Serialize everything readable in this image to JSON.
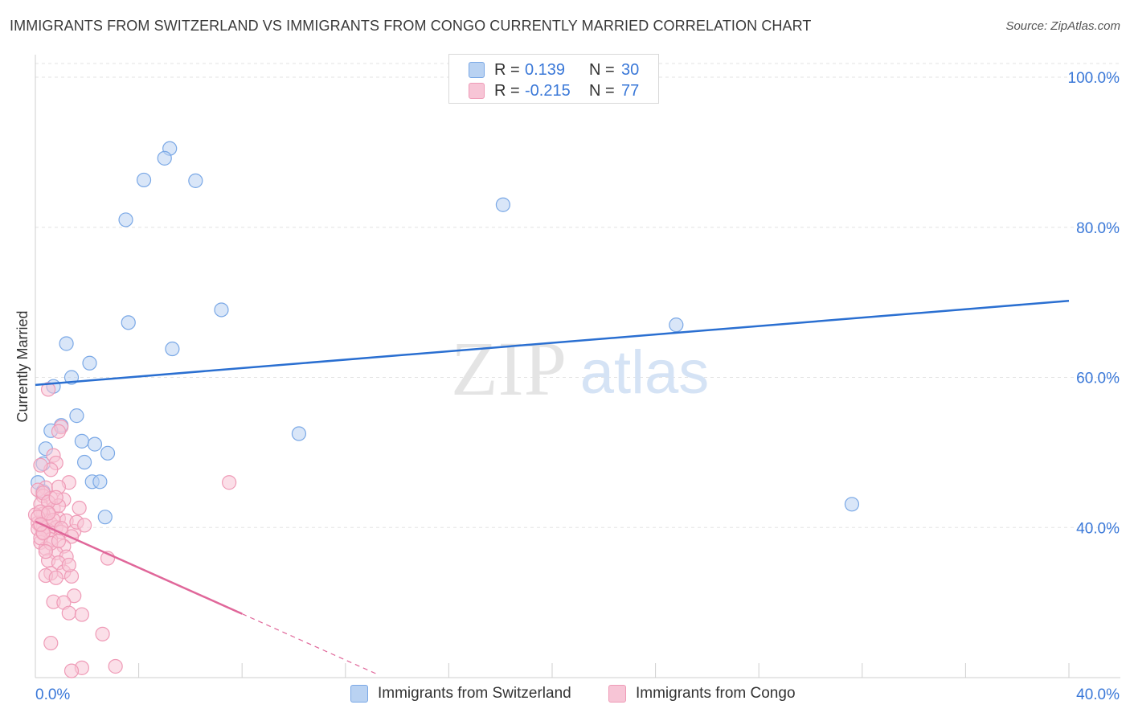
{
  "header": {
    "title": "IMMIGRANTS FROM SWITZERLAND VS IMMIGRANTS FROM CONGO CURRENTLY MARRIED CORRELATION CHART",
    "source": "Source: ZipAtlas.com"
  },
  "watermark": {
    "zip": "ZIP",
    "atlas": "atlas"
  },
  "legend": {
    "r_label": "R =",
    "n_label": "N =",
    "entries": [
      {
        "r": "0.139",
        "n": "30"
      },
      {
        "r": "-0.215",
        "n": "77"
      }
    ]
  },
  "chart_data": {
    "type": "scatter",
    "title": "IMMIGRANTS FROM SWITZERLAND VS IMMIGRANTS FROM CONGO CURRENTLY MARRIED CORRELATION CHART",
    "xlabel": "",
    "ylabel": "Currently Married",
    "xlim": [
      0,
      40
    ],
    "ylim": [
      20,
      103
    ],
    "x_ticks_visible": [
      "0.0%",
      "40.0%"
    ],
    "y_ticks": [
      {
        "value": 40,
        "label": "40.0%"
      },
      {
        "value": 60,
        "label": "60.0%"
      },
      {
        "value": 80,
        "label": "80.0%"
      },
      {
        "value": 100,
        "label": "100.0%"
      }
    ],
    "grid": true,
    "legend_position": "bottom",
    "series": [
      {
        "name": "Immigrants from Switzerland",
        "color": "#7aa8e6",
        "fill": "#b9d2f2",
        "line_color": "#2a6fd1",
        "r": 0.139,
        "n": 30,
        "trend": {
          "x0": 0,
          "y0": 59.0,
          "x1": 40,
          "y1": 70.2
        },
        "points": [
          [
            5.2,
            90.5
          ],
          [
            5.0,
            89.2
          ],
          [
            4.2,
            86.3
          ],
          [
            6.2,
            86.2
          ],
          [
            3.5,
            81.0
          ],
          [
            18.1,
            83.0
          ],
          [
            7.2,
            69.0
          ],
          [
            3.6,
            67.3
          ],
          [
            24.8,
            67.0
          ],
          [
            1.2,
            64.5
          ],
          [
            5.3,
            63.8
          ],
          [
            2.1,
            61.9
          ],
          [
            1.4,
            60.0
          ],
          [
            0.7,
            58.8
          ],
          [
            1.6,
            54.9
          ],
          [
            1.0,
            53.6
          ],
          [
            0.6,
            52.9
          ],
          [
            10.2,
            52.5
          ],
          [
            1.8,
            51.5
          ],
          [
            2.3,
            51.1
          ],
          [
            2.8,
            49.9
          ],
          [
            0.4,
            50.5
          ],
          [
            1.9,
            48.7
          ],
          [
            0.3,
            48.5
          ],
          [
            2.2,
            46.1
          ],
          [
            2.5,
            46.1
          ],
          [
            0.1,
            46.0
          ],
          [
            0.3,
            44.8
          ],
          [
            2.7,
            41.4
          ],
          [
            31.6,
            43.1
          ]
        ]
      },
      {
        "name": "Immigrants from Congo",
        "color": "#ef9bb7",
        "fill": "#f7c5d6",
        "line_color": "#e0679a",
        "r": -0.215,
        "n": 77,
        "trend": {
          "x0": 0,
          "y0": 40.8,
          "x1": 8.0,
          "y1": 28.5
        },
        "trend_dashed": {
          "x0": 8.0,
          "y0": 28.5,
          "x1": 13.2,
          "y1": 20.5
        },
        "points": [
          [
            0.5,
            58.4
          ],
          [
            1.0,
            53.4
          ],
          [
            0.9,
            52.8
          ],
          [
            0.7,
            49.6
          ],
          [
            0.8,
            48.6
          ],
          [
            0.6,
            47.7
          ],
          [
            0.2,
            48.3
          ],
          [
            1.3,
            46.0
          ],
          [
            0.4,
            45.3
          ],
          [
            0.9,
            45.4
          ],
          [
            7.5,
            46.0
          ],
          [
            0.1,
            45.0
          ],
          [
            0.3,
            44.2
          ],
          [
            0.6,
            43.9
          ],
          [
            1.1,
            43.7
          ],
          [
            0.2,
            43.1
          ],
          [
            0.7,
            42.5
          ],
          [
            0.5,
            42.0
          ],
          [
            0.3,
            41.8
          ],
          [
            0.0,
            41.7
          ],
          [
            0.9,
            41.2
          ],
          [
            1.2,
            40.9
          ],
          [
            0.4,
            40.9
          ],
          [
            0.1,
            40.6
          ],
          [
            0.6,
            40.5
          ],
          [
            0.2,
            40.2
          ],
          [
            0.3,
            40.0
          ],
          [
            0.8,
            40.0
          ],
          [
            0.1,
            39.8
          ],
          [
            0.5,
            39.6
          ],
          [
            1.0,
            39.4
          ],
          [
            1.5,
            39.5
          ],
          [
            0.3,
            39.2
          ],
          [
            1.4,
            38.8
          ],
          [
            0.6,
            38.4
          ],
          [
            0.2,
            38.0
          ],
          [
            1.1,
            37.5
          ],
          [
            0.4,
            37.2
          ],
          [
            0.8,
            36.6
          ],
          [
            1.2,
            36.1
          ],
          [
            2.8,
            35.9
          ],
          [
            0.5,
            35.6
          ],
          [
            0.9,
            35.3
          ],
          [
            1.1,
            34.1
          ],
          [
            0.6,
            33.9
          ],
          [
            0.4,
            33.6
          ],
          [
            0.8,
            33.3
          ],
          [
            1.4,
            33.5
          ],
          [
            1.5,
            30.9
          ],
          [
            0.7,
            30.1
          ],
          [
            1.1,
            30.0
          ],
          [
            1.3,
            28.6
          ],
          [
            1.8,
            28.4
          ],
          [
            2.6,
            25.8
          ],
          [
            0.6,
            24.6
          ],
          [
            1.8,
            21.3
          ],
          [
            3.1,
            21.5
          ],
          [
            1.4,
            20.9
          ],
          [
            0.2,
            38.6
          ],
          [
            0.9,
            42.9
          ],
          [
            1.6,
            40.7
          ],
          [
            0.3,
            44.6
          ],
          [
            0.7,
            41.0
          ],
          [
            1.9,
            40.3
          ],
          [
            0.5,
            43.4
          ],
          [
            0.2,
            42.1
          ],
          [
            1.0,
            39.9
          ],
          [
            0.6,
            37.9
          ],
          [
            0.4,
            36.8
          ],
          [
            1.3,
            35.0
          ],
          [
            0.1,
            41.4
          ],
          [
            0.8,
            44.0
          ],
          [
            0.3,
            39.3
          ],
          [
            1.7,
            42.6
          ],
          [
            0.9,
            38.2
          ],
          [
            0.5,
            41.9
          ],
          [
            0.2,
            40.4
          ]
        ]
      }
    ]
  }
}
